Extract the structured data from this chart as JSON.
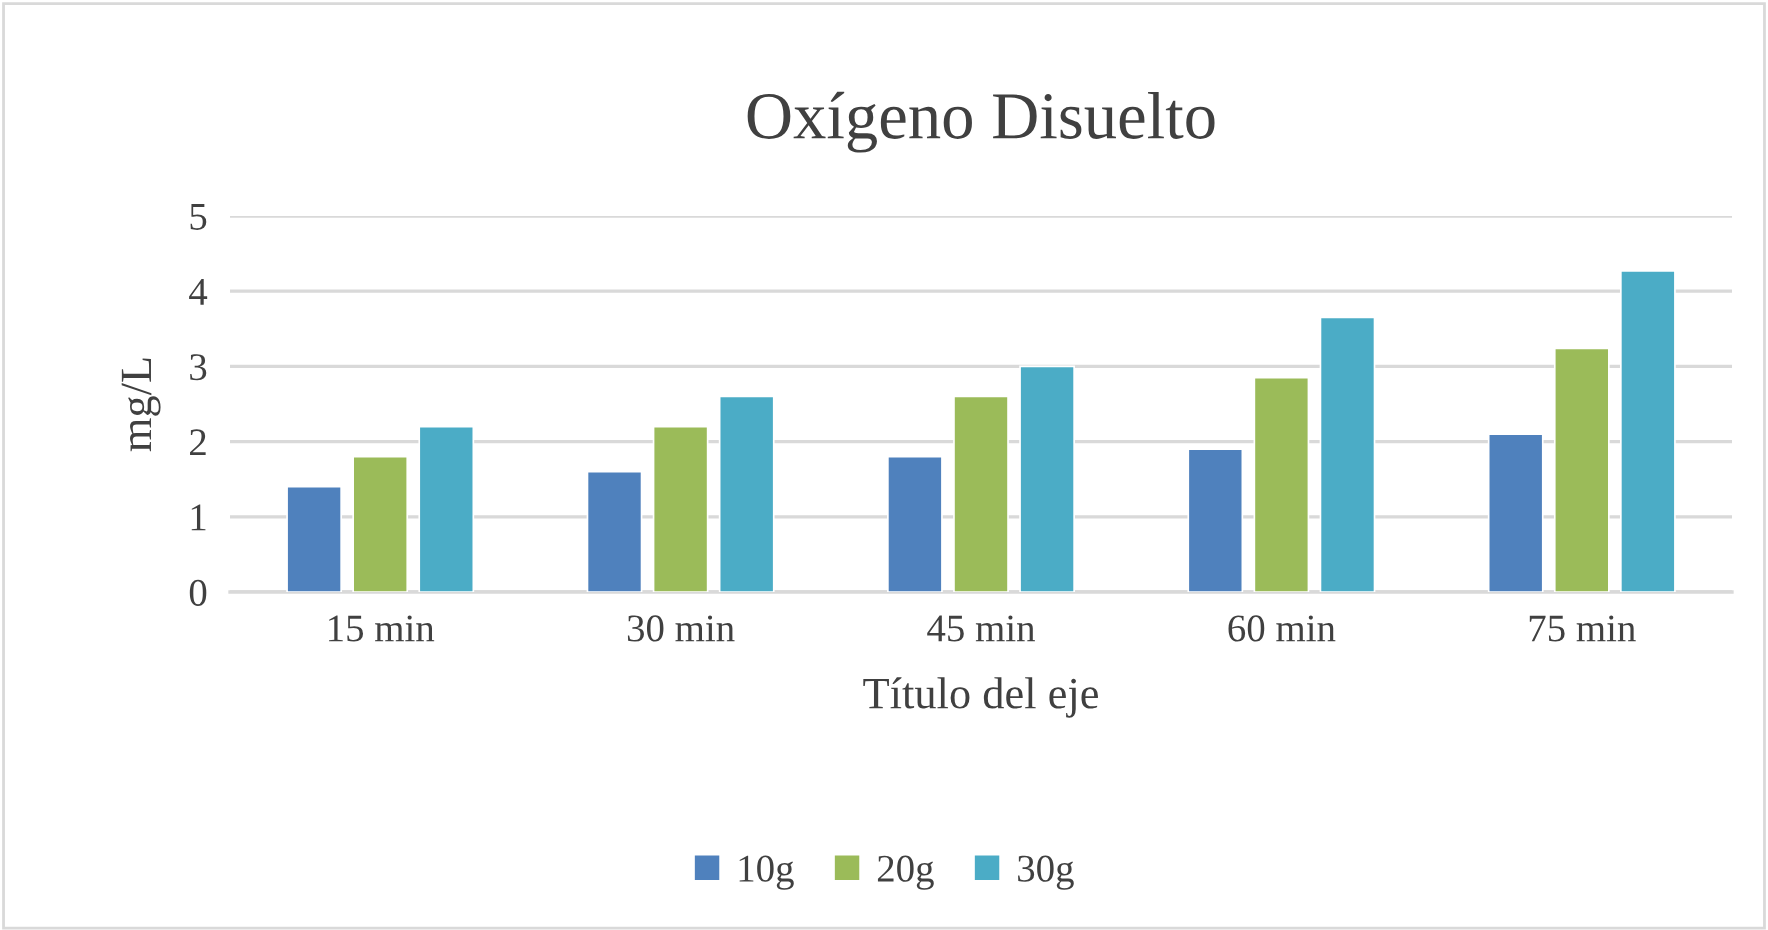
{
  "chart_data": {
    "type": "bar",
    "title": "Oxígeno Disuelto",
    "xlabel": "Título del eje",
    "ylabel": "mg/L",
    "categories": [
      "15 min",
      "30 min",
      "45 min",
      "60 min",
      "75 min"
    ],
    "series": [
      {
        "name": "10g",
        "color": "#4f81bd",
        "values": [
          1.4,
          1.6,
          1.8,
          1.9,
          2.1
        ]
      },
      {
        "name": "20g",
        "color": "#9bbb59",
        "values": [
          1.8,
          2.2,
          2.6,
          2.85,
          3.24
        ]
      },
      {
        "name": "30g",
        "color": "#4bacc6",
        "values": [
          2.2,
          2.6,
          3.0,
          3.65,
          4.27
        ]
      }
    ],
    "ylim": [
      0,
      5
    ],
    "yticks": [
      0,
      1,
      2,
      3,
      4,
      5
    ],
    "grid": "y",
    "legend": "bottom"
  }
}
